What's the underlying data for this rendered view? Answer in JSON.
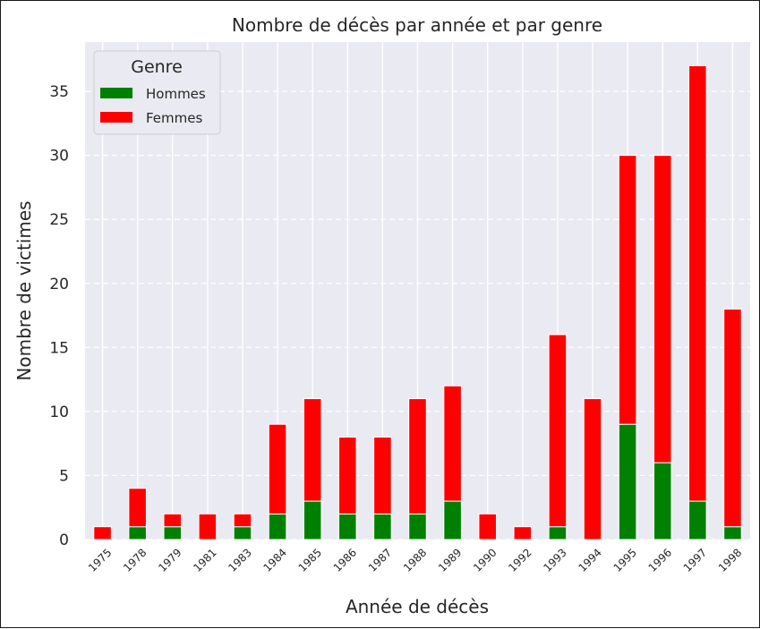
{
  "chart_data": {
    "type": "bar",
    "stacked": true,
    "title": "Nombre de décès par année et par genre",
    "xlabel": "Année de décès",
    "ylabel": "Nombre de victimes",
    "categories": [
      "1975",
      "1978",
      "1979",
      "1981",
      "1983",
      "1984",
      "1985",
      "1986",
      "1987",
      "1988",
      "1989",
      "1990",
      "1992",
      "1993",
      "1994",
      "1995",
      "1996",
      "1997",
      "1998"
    ],
    "series": [
      {
        "name": "Hommes",
        "color": "#008000",
        "values": [
          0,
          1,
          1,
          0,
          1,
          2,
          3,
          2,
          2,
          2,
          3,
          0,
          0,
          1,
          0,
          9,
          6,
          3,
          1
        ]
      },
      {
        "name": "Femmes",
        "color": "#ff0000",
        "values": [
          1,
          3,
          1,
          2,
          1,
          7,
          8,
          6,
          6,
          9,
          9,
          2,
          1,
          15,
          11,
          21,
          24,
          34,
          17
        ]
      }
    ],
    "ylim": [
      0,
      38.85
    ],
    "yticks": [
      0,
      5,
      10,
      15,
      20,
      25,
      30,
      35
    ],
    "grid": true,
    "background": "#eaeaf2",
    "legend": {
      "title": "Genre",
      "position": "top-left"
    }
  }
}
